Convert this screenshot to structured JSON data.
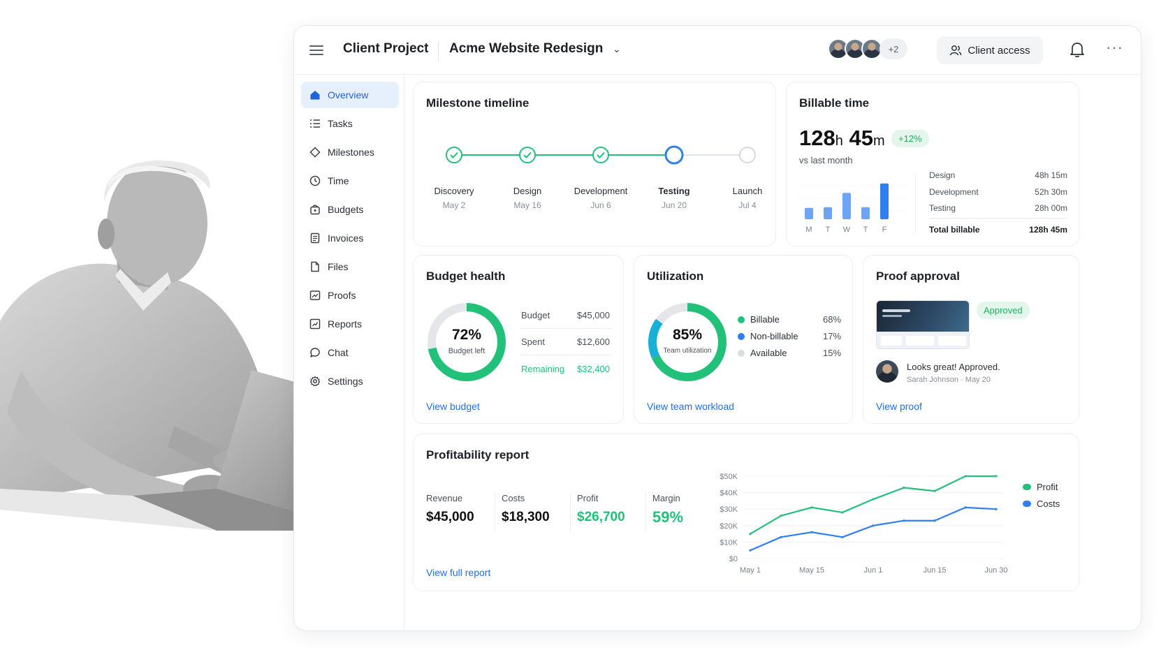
{
  "header": {
    "project_type": "Client Project",
    "project_name": "Acme Website Redesign",
    "avatars_more": "+2",
    "client_access_label": "Client access"
  },
  "sidebar": {
    "items": [
      {
        "label": "Overview",
        "icon": "home-icon",
        "active": true
      },
      {
        "label": "Tasks",
        "icon": "list-icon"
      },
      {
        "label": "Milestones",
        "icon": "diamond-icon"
      },
      {
        "label": "Time",
        "icon": "clock-icon"
      },
      {
        "label": "Budgets",
        "icon": "wallet-icon"
      },
      {
        "label": "Invoices",
        "icon": "invoice-icon"
      },
      {
        "label": "Files",
        "icon": "file-icon"
      },
      {
        "label": "Proofs",
        "icon": "proof-icon"
      },
      {
        "label": "Reports",
        "icon": "report-icon"
      },
      {
        "label": "Chat",
        "icon": "chat-icon"
      },
      {
        "label": "Settings",
        "icon": "gear-icon"
      }
    ]
  },
  "milestones": {
    "title": "Milestone timeline",
    "steps": [
      {
        "label": "Discovery",
        "date": "May 2",
        "status": "done"
      },
      {
        "label": "Design",
        "date": "May 16",
        "status": "done"
      },
      {
        "label": "Development",
        "date": "Jun 6",
        "status": "done"
      },
      {
        "label": "Testing",
        "date": "Jun 20",
        "status": "current"
      },
      {
        "label": "Launch",
        "date": "Jul 4",
        "status": "upcoming"
      }
    ]
  },
  "billable": {
    "title": "Billable time",
    "hours": "128",
    "h_unit": "h",
    "minutes": "45",
    "m_unit": "m",
    "change": "+12%",
    "compare": "vs last month",
    "days": [
      "M",
      "T",
      "W",
      "T",
      "F"
    ],
    "day_values": [
      0.3,
      0.32,
      0.7,
      0.32,
      0.95
    ],
    "rows": [
      {
        "label": "Design",
        "value": "48h 15m"
      },
      {
        "label": "Development",
        "value": "52h 30m"
      },
      {
        "label": "Testing",
        "value": "28h 00m"
      }
    ],
    "total_label": "Total billable",
    "total_value": "128h 45m"
  },
  "budget": {
    "title": "Budget health",
    "percent": "72%",
    "percent_value": 0.72,
    "percent_caption": "Budget left",
    "budget_label": "Budget",
    "budget_value": "$45,000",
    "spent_label": "Spent",
    "spent_value": "$12,600",
    "remaining_label": "Remaining",
    "remaining_value": "$32,400",
    "link": "View budget"
  },
  "utilization": {
    "title": "Utilization",
    "percent": "85%",
    "percent_value": 0.85,
    "caption": "Team utilization",
    "legend": [
      {
        "label": "Billable",
        "value": "68%",
        "color": "#22c17a"
      },
      {
        "label": "Non-billable",
        "value": "17%",
        "color": "#2f7ff0"
      },
      {
        "label": "Available",
        "value": "15%",
        "color": "#d9dce0"
      }
    ],
    "link": "View team workload"
  },
  "proof": {
    "title": "Proof approval",
    "status": "Approved",
    "comment": "Looks great! Approved.",
    "author": "Sarah Johnson",
    "date": "May 20",
    "link": "View proof"
  },
  "profit": {
    "title": "Profitability report",
    "kpis": [
      {
        "label": "Revenue",
        "value": "$45,000",
        "color": "#111111"
      },
      {
        "label": "Costs",
        "value": "$18,300",
        "color": "#111111"
      },
      {
        "label": "Profit",
        "value": "$26,700",
        "color": "#22c17a"
      },
      {
        "label": "Margin",
        "value": "59%",
        "color": "#22c17a"
      }
    ],
    "link": "View full report"
  },
  "chart_data": {
    "type": "line",
    "x": [
      "May 1",
      "May 8",
      "May 15",
      "May 22",
      "Jun 1",
      "Jun 8",
      "Jun 15",
      "Jun 22",
      "Jun 30"
    ],
    "x_ticks": [
      "May 1",
      "May 15",
      "Jun 1",
      "Jun 15",
      "Jun 30"
    ],
    "y_ticks": [
      "$0",
      "$10K",
      "$20K",
      "$30K",
      "$40K",
      "$50K"
    ],
    "ylim": [
      0,
      50000
    ],
    "series": [
      {
        "name": "Profit",
        "color": "#22c17a",
        "values": [
          15000,
          26000,
          31000,
          28000,
          36000,
          43000,
          41000,
          50000,
          50000
        ]
      },
      {
        "name": "Costs",
        "color": "#2f7ff0",
        "values": [
          5000,
          13000,
          16000,
          13000,
          20000,
          23000,
          23000,
          31000,
          30000
        ]
      }
    ],
    "legend": "right"
  }
}
